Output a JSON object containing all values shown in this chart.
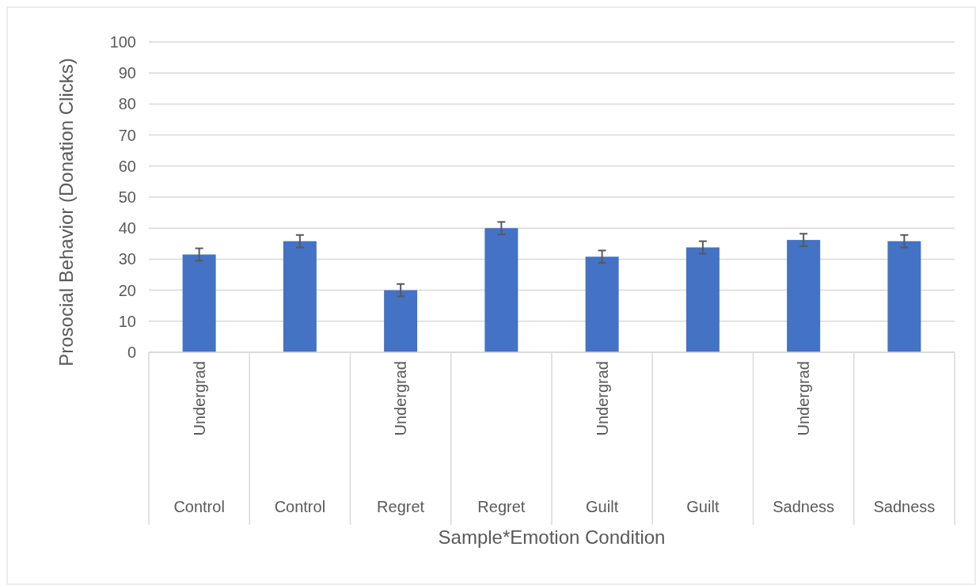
{
  "chart_data": {
    "type": "bar",
    "xlabel": "Sample*Emotion Condition",
    "ylabel": "Prosocial Behavior (Donation Clicks)",
    "categories": [
      "Undergrad",
      null,
      "Undergrad",
      null,
      "Undergrad",
      null,
      "Undergrad",
      null
    ],
    "annotations": [
      "Control",
      "Control",
      "Regret",
      "Regret",
      "Guilt",
      "Guilt",
      "Sadness",
      "Sadness"
    ],
    "values": [
      31.5,
      35.8,
      20,
      40,
      30.8,
      33.8,
      36.2,
      35.8
    ],
    "errors": [
      2,
      2,
      2,
      2,
      2,
      2,
      2,
      2
    ],
    "color": "#4472c4",
    "ylim": [
      0,
      100
    ],
    "yticks": [
      0,
      10,
      20,
      30,
      40,
      50,
      60,
      70,
      80,
      90,
      100
    ],
    "grid": "y"
  }
}
